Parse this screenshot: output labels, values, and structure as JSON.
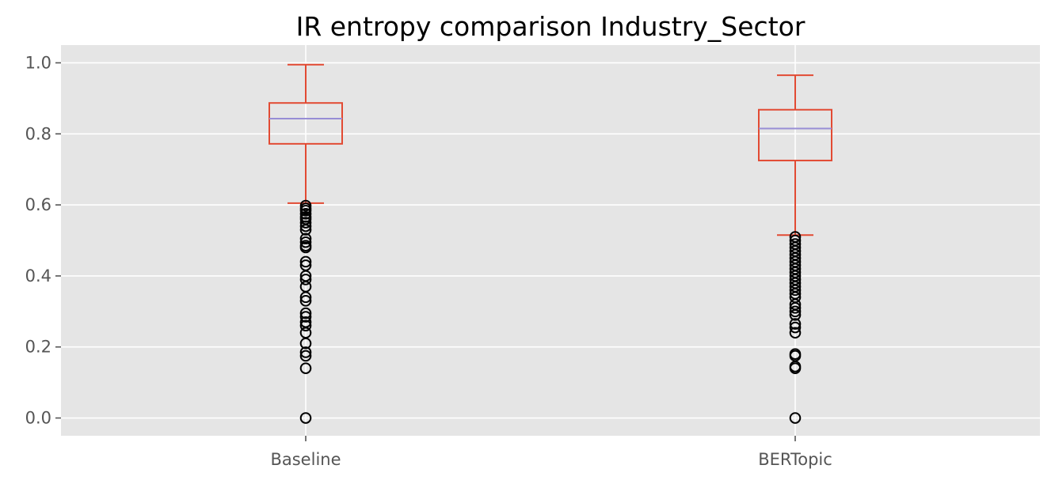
{
  "chart_data": {
    "type": "boxplot",
    "title": "IR entropy comparison Industry_Sector",
    "xlabel": "",
    "ylabel": "",
    "categories": [
      "Baseline",
      "BERTopic"
    ],
    "ylim": [
      -0.05,
      1.05
    ],
    "yticks": [
      0.0,
      0.2,
      0.4,
      0.6,
      0.8,
      1.0
    ],
    "ytick_labels": [
      "0.0",
      "0.2",
      "0.4",
      "0.6",
      "0.8",
      "1.0"
    ],
    "grid": true,
    "style": "ggplot",
    "colors": {
      "background": "#e5e5e5",
      "grid": "#ffffff",
      "box": "#e24a33",
      "median": "#988ed5",
      "flier": "#000000"
    },
    "boxes": [
      {
        "name": "Baseline",
        "whisker_low": 0.605,
        "q1": 0.772,
        "median": 0.843,
        "q3": 0.887,
        "whisker_high": 0.995,
        "outliers": [
          0.598,
          0.59,
          0.584,
          0.575,
          0.566,
          0.56,
          0.55,
          0.54,
          0.53,
          0.505,
          0.495,
          0.485,
          0.48,
          0.44,
          0.43,
          0.4,
          0.39,
          0.37,
          0.34,
          0.33,
          0.295,
          0.285,
          0.27,
          0.26,
          0.24,
          0.21,
          0.185,
          0.175,
          0.14,
          0.0
        ]
      },
      {
        "name": "BERTopic",
        "whisker_low": 0.515,
        "q1": 0.725,
        "median": 0.815,
        "q3": 0.868,
        "whisker_high": 0.965,
        "outliers": [
          0.51,
          0.5,
          0.49,
          0.48,
          0.47,
          0.46,
          0.45,
          0.44,
          0.43,
          0.42,
          0.41,
          0.4,
          0.39,
          0.38,
          0.37,
          0.36,
          0.35,
          0.34,
          0.32,
          0.31,
          0.3,
          0.29,
          0.265,
          0.255,
          0.24,
          0.18,
          0.175,
          0.145,
          0.14,
          0.0
        ]
      }
    ]
  }
}
